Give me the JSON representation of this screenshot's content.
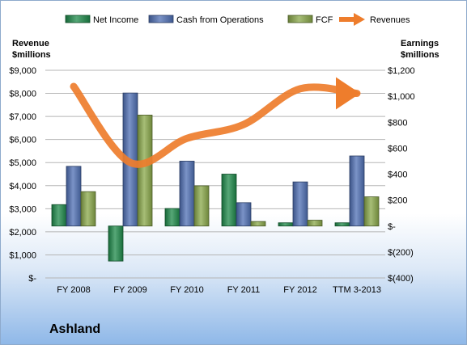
{
  "chart_data": {
    "type": "bar",
    "title": "Ashland",
    "categories": [
      "FY 2008",
      "FY 2009",
      "FY 2010",
      "FY 2011",
      "FY 2012",
      "TTM 3-2013"
    ],
    "y_left_label": [
      "Revenue",
      "$millions"
    ],
    "y_right_label": [
      "Earnings",
      "$millions"
    ],
    "y_left_ticks": [
      "$-",
      "$1,000",
      "$2,000",
      "$3,000",
      "$4,000",
      "$5,000",
      "$6,000",
      "$7,000",
      "$8,000",
      "$9,000"
    ],
    "y_right_ticks": [
      "$(400)",
      "$(200)",
      "$-",
      "$200",
      "$400",
      "$600",
      "$800",
      "$1,000",
      "$1,200"
    ],
    "y_left_lim": [
      0,
      9000
    ],
    "y_right_lim": [
      -400,
      1200
    ],
    "series": [
      {
        "name": "Net Income",
        "axis": "right",
        "kind": "bar",
        "color": "#1e8a4a",
        "values": [
          165,
          -270,
          135,
          400,
          25,
          25
        ]
      },
      {
        "name": "Cash from Operations",
        "axis": "right",
        "kind": "bar",
        "color": "#4f6fb4",
        "values": [
          460,
          1025,
          500,
          180,
          340,
          540
        ]
      },
      {
        "name": "FCF",
        "axis": "right",
        "kind": "bar",
        "color": "#8aa84a",
        "values": [
          265,
          855,
          310,
          35,
          45,
          225
        ]
      },
      {
        "name": "Revenues",
        "axis": "left",
        "kind": "line",
        "color": "#ee7d2c",
        "values": [
          8300,
          5000,
          6050,
          6650,
          8200,
          8000
        ]
      }
    ],
    "grid": true,
    "legend": "top"
  }
}
